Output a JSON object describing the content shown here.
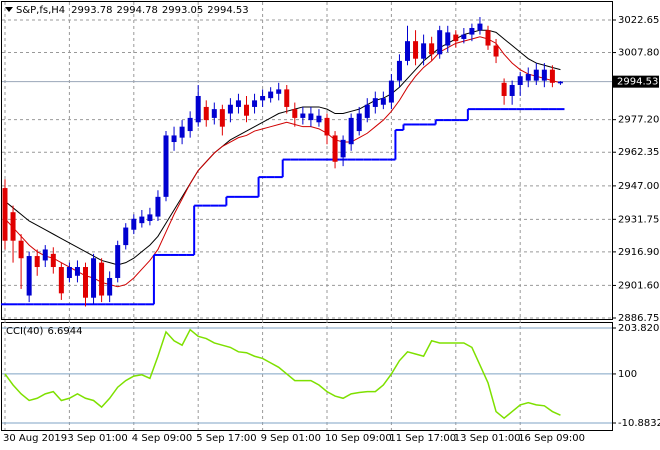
{
  "chart_data": [
    {
      "type": "candlestick",
      "title": "S&P,fs,H4",
      "categories": [
        "30 Aug 2019",
        null,
        null,
        null,
        null,
        null,
        null,
        null,
        "3 Sep 01:00",
        null,
        null,
        null,
        null,
        null,
        null,
        null,
        "4 Sep 09:00",
        null,
        null,
        null,
        null,
        null,
        null,
        null,
        "5 Sep 17:00",
        null,
        null,
        null,
        null,
        null,
        null,
        null,
        "9 Sep 01:00",
        null,
        null,
        null,
        null,
        null,
        null,
        null,
        "10 Sep 09:00",
        null,
        null,
        null,
        null,
        null,
        null,
        null,
        "11 Sep 17:00",
        null,
        null,
        null,
        null,
        null,
        null,
        null,
        "13 Sep 01:00",
        null,
        null,
        null,
        null,
        null,
        null,
        null,
        "16 Sep 09:00",
        null,
        null,
        null,
        null,
        null
      ],
      "open": [
        2946,
        2935,
        2922,
        2897,
        2915,
        2913,
        2916,
        2910,
        2905,
        2906,
        2910,
        2896,
        2912,
        2897,
        2905,
        2920,
        2927,
        2930,
        2931,
        2933,
        2942,
        2967,
        2969,
        2972,
        2976,
        2983,
        2978,
        2982,
        2980,
        2983,
        2984,
        2983,
        2986,
        2987,
        2989,
        2991,
        2982,
        2978,
        2977,
        2976,
        2978,
        2970,
        2960,
        2966,
        2972,
        2978,
        2983,
        2984,
        2985,
        2995,
        3004,
        3013,
        3005,
        3012,
        3007,
        3011,
        3016,
        3014,
        3016,
        3018,
        3018,
        3011,
        2994,
        2988,
        2993,
        2995,
        2995,
        2995,
        3000,
        2993.78
      ],
      "high": [
        2950,
        2938,
        2925,
        2917,
        2918,
        2920,
        2919,
        2912,
        2912,
        2913,
        2912,
        2916,
        2914,
        2908,
        2922,
        2930,
        2934,
        2936,
        2937,
        2945,
        2972,
        2974,
        2977,
        2981,
        2993,
        2986,
        2985,
        2984,
        2987,
        2989,
        2988,
        2989,
        2991,
        2992,
        2994,
        2993,
        2985,
        2983,
        2983,
        2982,
        2980,
        2972,
        2970,
        2980,
        2983,
        2987,
        2990,
        2990,
        2998,
        3007,
        3020,
        3018,
        3016,
        3015,
        3020,
        3020,
        3018,
        3019,
        3021,
        3024,
        3020,
        3014,
        2996,
        2995,
        2999,
        3001,
        3003,
        3003,
        3002,
        2994.78
      ],
      "low": [
        2918,
        2912,
        2900,
        2894,
        2906,
        2910,
        2907,
        2895,
        2903,
        2903,
        2892,
        2893,
        2894,
        2894,
        2903,
        2918,
        2925,
        2928,
        2929,
        2931,
        2940,
        2963,
        2966,
        2969,
        2974,
        2974,
        2975,
        2970,
        2976,
        2980,
        2976,
        2980,
        2983,
        2985,
        2986,
        2980,
        2974,
        2975,
        2974,
        2974,
        2966,
        2955,
        2956,
        2963,
        2970,
        2976,
        2980,
        2982,
        2982,
        2992,
        3002,
        3002,
        3002,
        3004,
        3005,
        3008,
        3010,
        3012,
        3013,
        3016,
        3009,
        3003,
        2984,
        2984,
        2988,
        2992,
        2993,
        2992,
        2992,
        2993.05
      ],
      "close": [
        2922,
        2922,
        2914,
        2915,
        2910,
        2918,
        2910,
        2898,
        2910,
        2910,
        2896,
        2914,
        2897,
        2905,
        2920,
        2928,
        2932,
        2933,
        2934,
        2942,
        2970,
        2970,
        2974,
        2978,
        2988,
        2977,
        2982,
        2974,
        2984,
        2986,
        2979,
        2986,
        2988,
        2990,
        2991,
        2983,
        2978,
        2980,
        2980,
        2979,
        2970,
        2958,
        2968,
        2978,
        2980,
        2984,
        2987,
        2987,
        2995,
        3004,
        3013,
        3005,
        3012,
        3007,
        3018,
        3017,
        3013,
        3016,
        3019,
        3021,
        3011,
        3006,
        2988,
        2993,
        2997,
        2998,
        3000,
        3000,
        2994,
        2994.53
      ],
      "up_color": "#0000d0",
      "down_color": "#e00000",
      "series": [
        {
          "color": "#000000",
          "values": [
            2940,
            2937,
            2934,
            2931,
            2929,
            2927,
            2925,
            2923,
            2921,
            2919,
            2917,
            2915,
            2913,
            2912,
            2911,
            2912,
            2914,
            2917,
            2920,
            2924,
            2930,
            2936,
            2942,
            2948,
            2954,
            2958,
            2962,
            2965,
            2968,
            2970,
            2972,
            2974,
            2976,
            2978,
            2980,
            2981,
            2982,
            2983,
            2983,
            2983,
            2982,
            2980,
            2980,
            2981,
            2982,
            2984,
            2986,
            2987,
            2989,
            2992,
            2996,
            3000,
            3004,
            3007,
            3010,
            3012,
            3014,
            3016,
            3017,
            3018,
            3018,
            3017,
            3014,
            3011,
            3008,
            3005,
            3003,
            3002,
            3001,
            3000
          ]
        },
        {
          "color": "#d00000",
          "values": [
            2932,
            2928,
            2924,
            2920,
            2917,
            2915,
            2914,
            2912,
            2910,
            2908,
            2906,
            2905,
            2903,
            2902,
            2901,
            2902,
            2905,
            2909,
            2913,
            2918,
            2926,
            2934,
            2941,
            2948,
            2954,
            2958,
            2962,
            2965,
            2967,
            2969,
            2970,
            2972,
            2973,
            2974,
            2975,
            2976,
            2975,
            2974,
            2974,
            2973,
            2971,
            2968,
            2967,
            2967,
            2969,
            2971,
            2974,
            2977,
            2981,
            2986,
            2992,
            2997,
            3001,
            3004,
            3008,
            3010,
            3012,
            3013,
            3014,
            3015,
            3014,
            3012,
            3007,
            3003,
            3000,
            2998,
            2997,
            2996,
            2995,
            2994
          ]
        },
        {
          "color": "#0000ff",
          "step": true,
          "values": [
            2893,
            2893,
            2893,
            2893,
            2893,
            2893,
            2893,
            2893,
            2893,
            2893,
            2893,
            2893,
            2893,
            2893,
            2893,
            2893,
            2893,
            2893,
            2893,
            2915.5,
            2915.5,
            2915.5,
            2915.5,
            2915.5,
            2938,
            2938,
            2938,
            2938,
            2942,
            2942,
            2942,
            2942,
            2951,
            2951,
            2951,
            2959,
            2959,
            2959,
            2959,
            2959,
            2959,
            2959,
            2959,
            2959,
            2959,
            2959,
            2959,
            2959,
            2959,
            2972.5,
            2975,
            2975,
            2975,
            2975,
            2977,
            2977,
            2977,
            2977,
            2982,
            2982,
            2982,
            2982,
            2982,
            2982,
            2982,
            2982,
            2982,
            2982,
            2982,
            2982
          ]
        }
      ],
      "ylim": [
        2886.75,
        3030.4
      ],
      "yticks": [
        3022.65,
        {
          "value": 3007.8,
          "label": "3007.80"
        },
        {
          "value": 2977.2,
          "label": "2977.20"
        },
        2962.35,
        {
          "value": 2947,
          "label": "2947.00"
        },
        2931.75,
        {
          "value": 2916.9,
          "label": "2916.90"
        },
        {
          "value": 2901.6,
          "label": "2901.60"
        },
        2886.75
      ],
      "grid": true
    },
    {
      "type": "line",
      "title": "CCI(40)",
      "color": "#7ee000",
      "values": [
        100,
        75,
        55,
        40,
        45,
        55,
        60,
        40,
        45,
        55,
        45,
        40,
        25,
        45,
        70,
        85,
        95,
        98,
        90,
        140,
        195,
        175,
        165,
        200,
        185,
        180,
        170,
        165,
        160,
        150,
        148,
        140,
        135,
        125,
        115,
        100,
        85,
        85,
        85,
        75,
        60,
        50,
        45,
        55,
        58,
        60,
        60,
        75,
        100,
        130,
        150,
        145,
        140,
        175,
        170,
        170,
        170,
        170,
        160,
        120,
        80,
        15,
        0,
        15,
        30,
        35,
        30,
        28,
        15,
        6.6944
      ],
      "ylim": [
        -10.8832,
        203.8201
      ],
      "yticks": [
        203.8201,
        100,
        -10.8832
      ],
      "grid": true
    }
  ]
}
